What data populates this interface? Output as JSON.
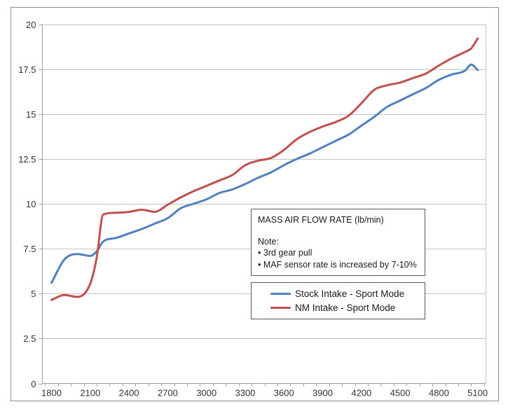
{
  "chart_data": {
    "type": "line",
    "title": "MASS AIR FLOW RATE (lb/min)",
    "xlabel": "",
    "ylabel": "",
    "xlim": [
      1730,
      5200
    ],
    "ylim": [
      0,
      20
    ],
    "grid": true,
    "legend_position": "inside-middle-right",
    "x_tick_labels": [
      "1800",
      "2100",
      "2400",
      "2700",
      "3000",
      "3300",
      "3600",
      "3900",
      "4200",
      "4500",
      "4800",
      "5100"
    ],
    "x_minor_tick_step": 100,
    "y_tick_labels": [
      "0",
      "2.5",
      "5",
      "7.5",
      "10",
      "12.5",
      "15",
      "17.5",
      "20"
    ],
    "x": [
      1800,
      1900,
      2000,
      2100,
      2150,
      2200,
      2300,
      2400,
      2500,
      2600,
      2700,
      2800,
      2900,
      3000,
      3100,
      3200,
      3300,
      3400,
      3500,
      3600,
      3700,
      3800,
      3900,
      4000,
      4100,
      4200,
      4300,
      4400,
      4500,
      4600,
      4700,
      4800,
      4900,
      5000,
      5050,
      5100
    ],
    "series": [
      {
        "name": "Stock Intake - Sport Mode",
        "color": "#4F81BD",
        "values": [
          5.6,
          6.9,
          7.2,
          7.1,
          7.35,
          7.9,
          8.1,
          8.35,
          8.6,
          8.9,
          9.2,
          9.75,
          10.0,
          10.25,
          10.6,
          10.8,
          11.1,
          11.45,
          11.75,
          12.15,
          12.5,
          12.8,
          13.15,
          13.5,
          13.85,
          14.35,
          14.85,
          15.4,
          15.75,
          16.1,
          16.45,
          16.9,
          17.2,
          17.4,
          17.75,
          17.45
        ]
      },
      {
        "name": "NM Intake - Sport Mode",
        "color": "#C0504D",
        "values": [
          4.65,
          4.92,
          4.82,
          5.55,
          7.0,
          9.4,
          9.5,
          9.55,
          9.67,
          9.55,
          9.95,
          10.35,
          10.7,
          11.0,
          11.3,
          11.6,
          12.15,
          12.4,
          12.55,
          13.0,
          13.6,
          14.0,
          14.3,
          14.55,
          14.9,
          15.6,
          16.35,
          16.6,
          16.75,
          17.0,
          17.25,
          17.7,
          18.1,
          18.45,
          18.65,
          19.2
        ]
      }
    ]
  },
  "note_box": {
    "title": "MASS AIR FLOW RATE (lb/min)",
    "note_label": "Note:",
    "bullet_char": "•",
    "bullets": [
      "3rd gear pull",
      "MAF sensor rate is increased by 7-10%"
    ]
  },
  "legend": {
    "items": [
      {
        "label": "Stock Intake - Sport Mode",
        "color": "#4F81BD"
      },
      {
        "label": "NM Intake - Sport Mode",
        "color": "#C0504D"
      }
    ]
  },
  "style": {
    "background": "#FFFFFF",
    "outer_border": "#8C8C8C",
    "gridline": "#C4C4C4",
    "axis": "#9C9C9C",
    "tick_text": "#333333",
    "box_border": "#595959",
    "box_text": "#1A1A1A"
  }
}
